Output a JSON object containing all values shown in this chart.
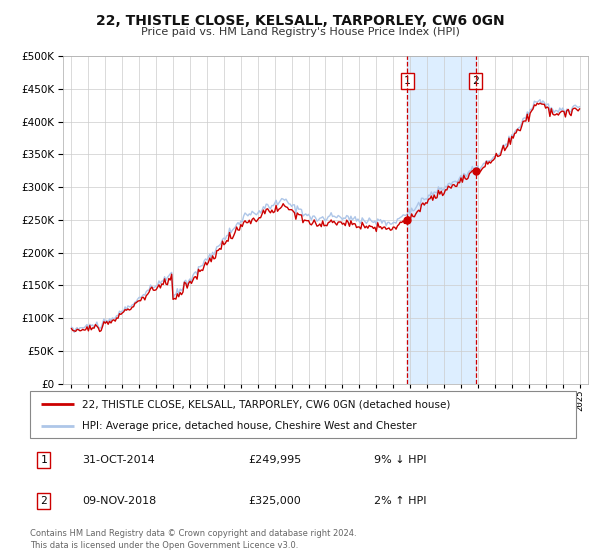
{
  "title": "22, THISTLE CLOSE, KELSALL, TARPORLEY, CW6 0GN",
  "subtitle": "Price paid vs. HM Land Registry's House Price Index (HPI)",
  "legend_line1": "22, THISTLE CLOSE, KELSALL, TARPORLEY, CW6 0GN (detached house)",
  "legend_line2": "HPI: Average price, detached house, Cheshire West and Chester",
  "sale1_label": "1",
  "sale1_date": "31-OCT-2014",
  "sale1_price": "£249,995",
  "sale1_hpi": "9% ↓ HPI",
  "sale2_label": "2",
  "sale2_date": "09-NOV-2018",
  "sale2_price": "£325,000",
  "sale2_hpi": "2% ↑ HPI",
  "footer1": "Contains HM Land Registry data © Crown copyright and database right 2024.",
  "footer2": "This data is licensed under the Open Government Licence v3.0.",
  "sale1_year": 2014.833,
  "sale2_year": 2018.858,
  "sale1_value": 249995,
  "sale2_value": 325000,
  "hpi_color": "#aec6e8",
  "price_color": "#cc0000",
  "sale_dot_color": "#cc0000",
  "shade_color": "#ddeeff",
  "vline_color": "#cc0000",
  "grid_color": "#cccccc",
  "ylim_max": 500000,
  "background_color": "#ffffff",
  "xlim_min": 1994.5,
  "xlim_max": 2025.5
}
